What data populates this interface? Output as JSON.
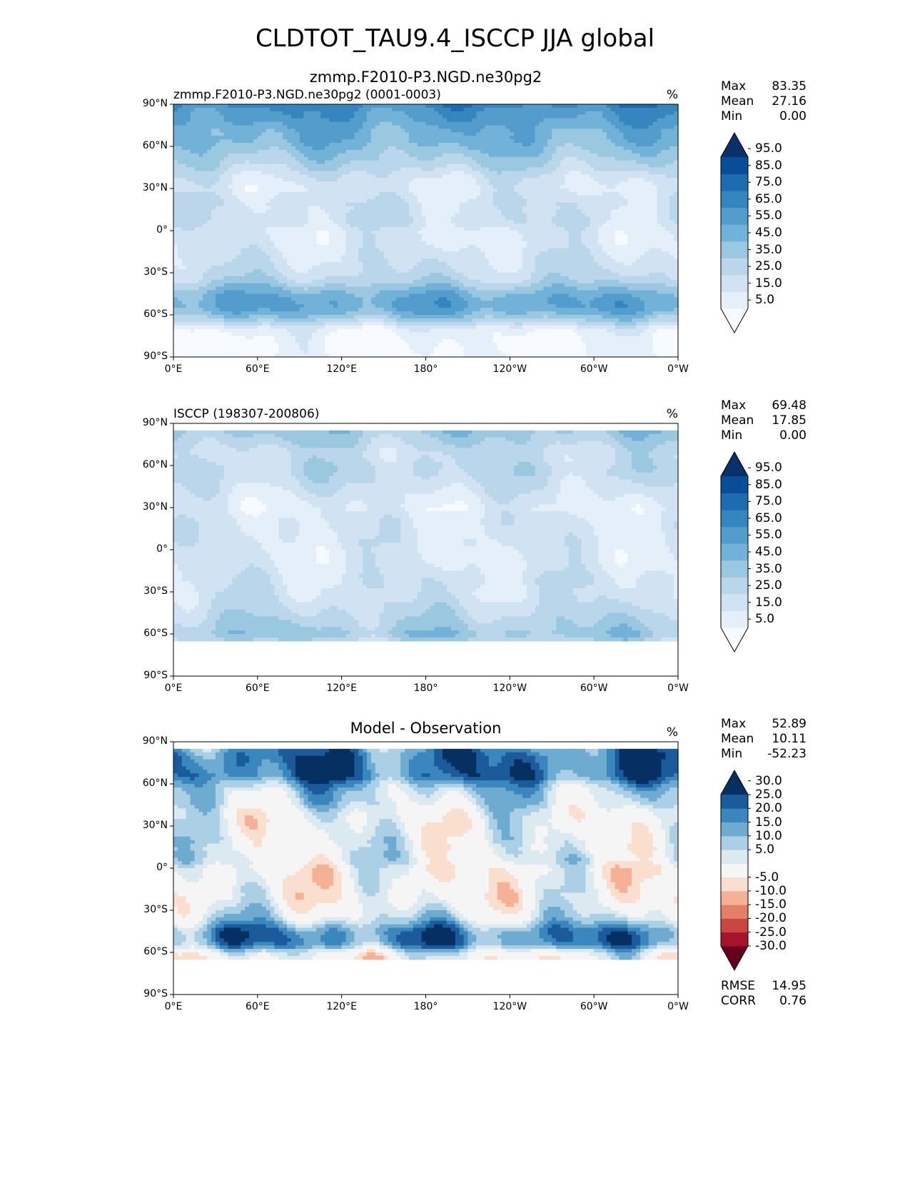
{
  "figure_title": "CLDTOT_TAU9.4_ISCCP JJA global",
  "chart_data": [
    {
      "type": "heatmap",
      "kind": "lat-lon map",
      "left_title": "zmmp.F2010-P3.NGD.ne30pg2 (0001-0003)",
      "center_title": "zmmp.F2010-P3.NGD.ne30pg2",
      "units": "%",
      "stats": {
        "Max": "83.35",
        "Mean": "27.16",
        "Min": "0.00"
      },
      "colorbar": {
        "palette": "blues",
        "levels": [
          0,
          5,
          15,
          25,
          35,
          45,
          55,
          65,
          75,
          85,
          95,
          100
        ],
        "tick_labels": [
          "5.0",
          "15.0",
          "25.0",
          "35.0",
          "45.0",
          "55.0",
          "65.0",
          "75.0",
          "85.0",
          "95.0"
        ],
        "colors": [
          "#f7fbff",
          "#e4eff9",
          "#d1e2f3",
          "#bad6eb",
          "#9ac8e0",
          "#73b2d8",
          "#529dcc",
          "#3585bf",
          "#1d6cb1",
          "#084d96",
          "#08306b"
        ]
      },
      "zonal_profile_approx": [
        70,
        62,
        60,
        55,
        50,
        50,
        45,
        40,
        35,
        30,
        22,
        18,
        15,
        18,
        22,
        20,
        22,
        22,
        15,
        15,
        15,
        18,
        20,
        22,
        25,
        30,
        40,
        50,
        55,
        55,
        45,
        30,
        10,
        5,
        3,
        2,
        2
      ]
    },
    {
      "type": "heatmap",
      "kind": "lat-lon map",
      "left_title": "ISCCP (198307-200806)",
      "center_title": "",
      "units": "%",
      "stats": {
        "Max": "69.48",
        "Mean": "17.85",
        "Min": "0.00"
      },
      "colorbar": {
        "palette": "blues",
        "levels": [
          0,
          5,
          15,
          25,
          35,
          45,
          55,
          65,
          75,
          85,
          95,
          100
        ],
        "tick_labels": [
          "5.0",
          "15.0",
          "25.0",
          "35.0",
          "45.0",
          "55.0",
          "65.0",
          "75.0",
          "85.0",
          "95.0"
        ],
        "colors": [
          "#f7fbff",
          "#e4eff9",
          "#d1e2f3",
          "#bad6eb",
          "#9ac8e0",
          "#73b2d8",
          "#529dcc",
          "#3585bf",
          "#1d6cb1",
          "#084d96",
          "#08306b"
        ]
      },
      "zonal_profile_approx": [
        null,
        40,
        35,
        30,
        25,
        25,
        28,
        28,
        25,
        22,
        18,
        15,
        12,
        15,
        17,
        17,
        17,
        17,
        15,
        15,
        15,
        17,
        20,
        20,
        20,
        22,
        25,
        28,
        32,
        35,
        40,
        30,
        null,
        null,
        null,
        null,
        null
      ]
    },
    {
      "type": "heatmap",
      "kind": "lat-lon map",
      "left_title": "",
      "center_title": "Model - Observation",
      "units": "%",
      "stats": {
        "Max": "52.89",
        "Mean": "10.11",
        "Min": "-52.23"
      },
      "extra_stats": {
        "RMSE": "14.95",
        "CORR": "0.76"
      },
      "colorbar": {
        "palette": "RdBu_r",
        "levels": [
          -100,
          -30,
          -25,
          -20,
          -15,
          -10,
          -5,
          5,
          10,
          15,
          20,
          25,
          30,
          100
        ],
        "tick_labels": [
          "-30.0",
          "-25.0",
          "-20.0",
          "-15.0",
          "-10.0",
          "-5.0",
          "5.0",
          "10.0",
          "15.0",
          "20.0",
          "25.0",
          "30.0"
        ],
        "colors": [
          "#67001f",
          "#a51429",
          "#c94741",
          "#e27f68",
          "#f4b196",
          "#fbdfce",
          "#f5f5f5",
          "#dbe9f1",
          "#abd0e6",
          "#6eabd1",
          "#3a87bd",
          "#1b5a9b",
          "#053061"
        ]
      },
      "zonal_profile_approx": [
        null,
        22,
        25,
        25,
        25,
        25,
        17,
        12,
        10,
        8,
        4,
        3,
        3,
        3,
        5,
        3,
        5,
        5,
        0,
        0,
        0,
        1,
        0,
        2,
        5,
        8,
        15,
        22,
        23,
        20,
        5,
        0,
        null,
        null,
        null,
        null,
        null
      ]
    }
  ],
  "axes": {
    "lat_ticks": [
      "90°N",
      "60°N",
      "30°N",
      "0°",
      "30°S",
      "60°S",
      "90°S"
    ],
    "lon_ticks": [
      "0°E",
      "60°E",
      "120°E",
      "180°",
      "120°W",
      "60°W",
      "0°W"
    ],
    "lat_range": [
      -90,
      90
    ],
    "lon_range": [
      0,
      360
    ]
  },
  "stat_labels": [
    "Max",
    "Mean",
    "Min"
  ],
  "extra_stat_labels": [
    "RMSE",
    "CORR"
  ]
}
